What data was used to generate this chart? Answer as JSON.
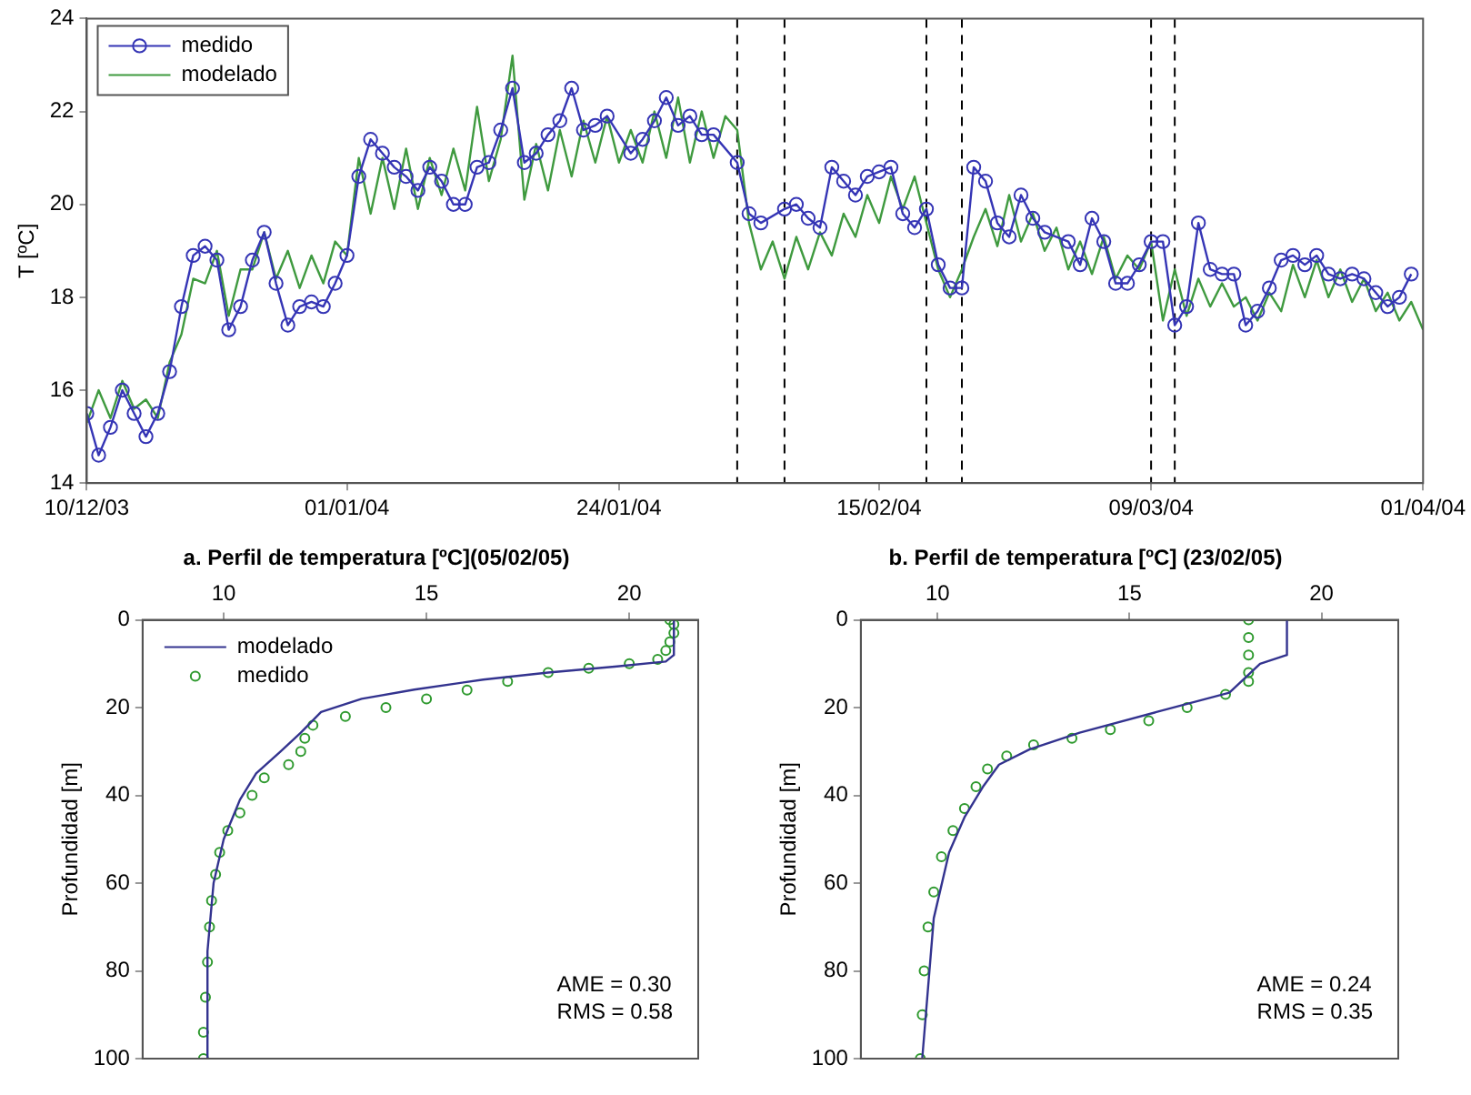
{
  "chart_data": [
    {
      "type": "line",
      "ylabel": "T [ºC]",
      "xlim": [
        "2003-12-10",
        "2004-04-01"
      ],
      "xticks": [
        {
          "value": "2003-12-10",
          "label": "10/12/03"
        },
        {
          "value": "2004-01-01",
          "label": "01/01/04"
        },
        {
          "value": "2004-01-24",
          "label": "24/01/04"
        },
        {
          "value": "2004-02-15",
          "label": "15/02/04"
        },
        {
          "value": "2004-03-09",
          "label": "09/03/04"
        },
        {
          "value": "2004-04-01",
          "label": "01/04/04"
        }
      ],
      "ylim": [
        14,
        24
      ],
      "yticks": [
        14,
        16,
        18,
        20,
        22,
        24
      ],
      "grid": false,
      "legend": "top left",
      "series": [
        {
          "name": "medido",
          "color": "#3535b5",
          "marker": "circle",
          "x": [
            "2003-12-10",
            "2003-12-11",
            "2003-12-12",
            "2003-12-13",
            "2003-12-14",
            "2003-12-15",
            "2003-12-16",
            "2003-12-17",
            "2003-12-18",
            "2003-12-19",
            "2003-12-20",
            "2003-12-21",
            "2003-12-22",
            "2003-12-23",
            "2003-12-24",
            "2003-12-25",
            "2003-12-26",
            "2003-12-27",
            "2003-12-28",
            "2003-12-29",
            "2003-12-30",
            "2003-12-31",
            "2004-01-01",
            "2004-01-02",
            "2004-01-03",
            "2004-01-04",
            "2004-01-05",
            "2004-01-06",
            "2004-01-07",
            "2004-01-08",
            "2004-01-09",
            "2004-01-10",
            "2004-01-11",
            "2004-01-12",
            "2004-01-13",
            "2004-01-14",
            "2004-01-15",
            "2004-01-16",
            "2004-01-17",
            "2004-01-18",
            "2004-01-19",
            "2004-01-20",
            "2004-01-21",
            "2004-01-22",
            "2004-01-23",
            "2004-01-25",
            "2004-01-26",
            "2004-01-27",
            "2004-01-28",
            "2004-01-29",
            "2004-01-30",
            "2004-01-31",
            "2004-02-01",
            "2004-02-03",
            "2004-02-04",
            "2004-02-05",
            "2004-02-07",
            "2004-02-08",
            "2004-02-09",
            "2004-02-10",
            "2004-02-11",
            "2004-02-12",
            "2004-02-13",
            "2004-02-14",
            "2004-02-15",
            "2004-02-16",
            "2004-02-17",
            "2004-02-18",
            "2004-02-19",
            "2004-02-20",
            "2004-02-21",
            "2004-02-22",
            "2004-02-23",
            "2004-02-24",
            "2004-02-25",
            "2004-02-26",
            "2004-02-27",
            "2004-02-28",
            "2004-02-29",
            "2004-03-02",
            "2004-03-03",
            "2004-03-04",
            "2004-03-05",
            "2004-03-06",
            "2004-03-07",
            "2004-03-08",
            "2004-03-09",
            "2004-03-10",
            "2004-03-11",
            "2004-03-12",
            "2004-03-13",
            "2004-03-14",
            "2004-03-15",
            "2004-03-16",
            "2004-03-17",
            "2004-03-18",
            "2004-03-19",
            "2004-03-20",
            "2004-03-21",
            "2004-03-22",
            "2004-03-23",
            "2004-03-24",
            "2004-03-25",
            "2004-03-26",
            "2004-03-27",
            "2004-03-28",
            "2004-03-29",
            "2004-03-30",
            "2004-03-31"
          ],
          "values": [
            15.5,
            14.6,
            15.2,
            16.0,
            15.5,
            15.0,
            15.5,
            16.4,
            17.8,
            18.9,
            19.1,
            18.8,
            17.3,
            17.8,
            18.8,
            19.4,
            18.3,
            17.4,
            17.8,
            17.9,
            17.8,
            18.3,
            18.9,
            20.6,
            21.4,
            21.1,
            20.8,
            20.6,
            20.3,
            20.8,
            20.5,
            20.0,
            20.0,
            20.8,
            20.9,
            21.6,
            22.5,
            20.9,
            21.1,
            21.5,
            21.8,
            22.5,
            21.6,
            21.7,
            21.9,
            21.1,
            21.4,
            21.8,
            22.3,
            21.7,
            21.9,
            21.5,
            21.5,
            20.9,
            19.8,
            19.6,
            19.9,
            20.0,
            19.7,
            19.5,
            20.8,
            20.5,
            20.2,
            20.6,
            20.7,
            20.8,
            19.8,
            19.5,
            19.9,
            18.7,
            18.2,
            18.2,
            20.8,
            20.5,
            19.6,
            19.3,
            20.2,
            19.7,
            19.4,
            19.2,
            18.7,
            19.7,
            19.2,
            18.3,
            18.3,
            18.7,
            19.2,
            19.2,
            17.4,
            17.8,
            19.6,
            18.6,
            18.5,
            18.5,
            17.4,
            17.7,
            18.2,
            18.8,
            18.9,
            18.7,
            18.9,
            18.5,
            18.4,
            18.5,
            18.4,
            18.1,
            17.8,
            18.0,
            18.5
          ]
        },
        {
          "name": "modelado",
          "color": "#3f9a3f",
          "marker": "none",
          "x": [
            "2003-12-10",
            "2003-12-11",
            "2003-12-12",
            "2003-12-13",
            "2003-12-14",
            "2003-12-15",
            "2003-12-16",
            "2003-12-17",
            "2003-12-18",
            "2003-12-19",
            "2003-12-20",
            "2003-12-21",
            "2003-12-22",
            "2003-12-23",
            "2003-12-24",
            "2003-12-25",
            "2003-12-26",
            "2003-12-27",
            "2003-12-28",
            "2003-12-29",
            "2003-12-30",
            "2003-12-31",
            "2004-01-01",
            "2004-01-02",
            "2004-01-03",
            "2004-01-04",
            "2004-01-05",
            "2004-01-06",
            "2004-01-07",
            "2004-01-08",
            "2004-01-09",
            "2004-01-10",
            "2004-01-11",
            "2004-01-12",
            "2004-01-13",
            "2004-01-14",
            "2004-01-15",
            "2004-01-16",
            "2004-01-17",
            "2004-01-18",
            "2004-01-19",
            "2004-01-20",
            "2004-01-21",
            "2004-01-22",
            "2004-01-23",
            "2004-01-24",
            "2004-01-25",
            "2004-01-26",
            "2004-01-27",
            "2004-01-28",
            "2004-01-29",
            "2004-01-30",
            "2004-01-31",
            "2004-02-01",
            "2004-02-02",
            "2004-02-03",
            "2004-02-04",
            "2004-02-05",
            "2004-02-06",
            "2004-02-07",
            "2004-02-08",
            "2004-02-09",
            "2004-02-10",
            "2004-02-11",
            "2004-02-12",
            "2004-02-13",
            "2004-02-14",
            "2004-02-15",
            "2004-02-16",
            "2004-02-17",
            "2004-02-18",
            "2004-02-19",
            "2004-02-20",
            "2004-02-21",
            "2004-02-22",
            "2004-02-23",
            "2004-02-24",
            "2004-02-25",
            "2004-02-26",
            "2004-02-27",
            "2004-02-28",
            "2004-02-29",
            "2004-03-01",
            "2004-03-02",
            "2004-03-03",
            "2004-03-04",
            "2004-03-05",
            "2004-03-06",
            "2004-03-07",
            "2004-03-08",
            "2004-03-09",
            "2004-03-10",
            "2004-03-11",
            "2004-03-12",
            "2004-03-13",
            "2004-03-14",
            "2004-03-15",
            "2004-03-16",
            "2004-03-17",
            "2004-03-18",
            "2004-03-19",
            "2004-03-20",
            "2004-03-21",
            "2004-03-22",
            "2004-03-23",
            "2004-03-24",
            "2004-03-25",
            "2004-03-26",
            "2004-03-27",
            "2004-03-28",
            "2004-03-29",
            "2004-03-30",
            "2004-03-31",
            "2004-04-01"
          ],
          "values": [
            15.3,
            16.0,
            15.4,
            16.2,
            15.6,
            15.8,
            15.4,
            16.6,
            17.2,
            18.4,
            18.3,
            19.0,
            17.6,
            18.6,
            18.6,
            19.4,
            18.4,
            19.0,
            18.2,
            18.9,
            18.3,
            19.2,
            18.9,
            21.0,
            19.8,
            21.0,
            19.9,
            21.2,
            19.9,
            21.0,
            20.2,
            21.2,
            20.3,
            22.1,
            20.5,
            21.4,
            23.2,
            20.1,
            21.3,
            20.3,
            21.6,
            20.6,
            21.8,
            20.9,
            21.9,
            20.9,
            21.6,
            20.9,
            22.0,
            21.0,
            22.3,
            20.9,
            22.0,
            21.0,
            21.9,
            21.6,
            19.6,
            18.6,
            19.2,
            18.4,
            19.3,
            18.6,
            19.4,
            18.9,
            19.8,
            19.3,
            20.2,
            19.6,
            20.6,
            19.9,
            20.6,
            19.6,
            18.6,
            18.0,
            18.6,
            19.3,
            19.9,
            19.1,
            20.2,
            19.2,
            19.8,
            19.0,
            19.5,
            18.6,
            19.2,
            18.5,
            19.3,
            18.4,
            18.9,
            18.6,
            19.2,
            17.5,
            18.6,
            17.6,
            18.4,
            17.8,
            18.3,
            17.8,
            18.0,
            17.5,
            18.1,
            17.7,
            18.7,
            18.0,
            18.8,
            18.0,
            18.6,
            17.9,
            18.4,
            17.7,
            18.1,
            17.5,
            17.9,
            17.3
          ]
        }
      ],
      "ref_lines": [
        {
          "axis": "x",
          "value": "2004-02-03",
          "color": "#000000",
          "line_style": "dashed"
        },
        {
          "axis": "x",
          "value": "2004-02-07",
          "color": "#000000",
          "line_style": "dashed"
        },
        {
          "axis": "x",
          "value": "2004-02-19",
          "color": "#000000",
          "line_style": "dashed"
        },
        {
          "axis": "x",
          "value": "2004-02-22",
          "color": "#000000",
          "line_style": "dashed"
        },
        {
          "axis": "x",
          "value": "2004-03-09",
          "color": "#000000",
          "line_style": "dashed"
        },
        {
          "axis": "x",
          "value": "2004-03-11",
          "color": "#000000",
          "line_style": "dashed"
        }
      ]
    },
    {
      "type": "line",
      "title": "a. Perfil de temperatura [ºC](05/02/05)",
      "ylabel": "Profundidad [m]",
      "xlim": [
        8,
        21.7
      ],
      "xticks": [
        10,
        15,
        20
      ],
      "ylim": [
        100,
        0
      ],
      "yticks": [
        0,
        20,
        40,
        60,
        80,
        100
      ],
      "grid": false,
      "legend": "top left",
      "annotations": [
        "AME = 0.30",
        "RMS = 0.58"
      ],
      "series": [
        {
          "name": "modelado",
          "color": "#33338f",
          "marker": "none",
          "x": [
            21.1,
            21.1,
            20.9,
            19.7,
            18.0,
            16.4,
            14.7,
            13.4,
            12.4,
            11.9,
            11.4,
            10.8,
            10.4,
            10.0,
            9.75,
            9.6,
            9.6
          ],
          "values": [
            0,
            8,
            9.5,
            10.6,
            12,
            13.6,
            15.9,
            18,
            21,
            25.7,
            30,
            35,
            41,
            50,
            60,
            75.5,
            100
          ]
        },
        {
          "name": "medido",
          "type": "scatter",
          "color": "#2f9a2f",
          "marker": "circle",
          "x": [
            21.0,
            21.1,
            21.1,
            21.0,
            20.9,
            20.7,
            20.0,
            19.0,
            18.0,
            17.0,
            16.0,
            15.0,
            14.0,
            13.0,
            12.2,
            12.0,
            11.9,
            11.6,
            11.0,
            10.7,
            10.4,
            10.1,
            9.9,
            9.8,
            9.7,
            9.65,
            9.6,
            9.55,
            9.5,
            9.5
          ],
          "values": [
            0,
            1,
            3,
            5,
            7,
            9,
            10,
            11,
            12,
            14,
            16,
            18,
            20,
            22,
            24,
            27,
            30,
            33,
            36,
            40,
            44,
            48,
            53,
            58,
            64,
            70,
            78,
            86,
            94,
            100
          ]
        }
      ]
    },
    {
      "type": "line",
      "title": "b. Perfil de temperatura [ºC] (23/02/05)",
      "ylabel": "Profundidad [m]",
      "xlim": [
        8,
        22
      ],
      "xticks": [
        10,
        15,
        20
      ],
      "ylim": [
        100,
        0
      ],
      "yticks": [
        0,
        20,
        40,
        60,
        80,
        100
      ],
      "grid": false,
      "annotations": [
        "AME = 0.24",
        "RMS = 0.35"
      ],
      "series": [
        {
          "color": "#33338f",
          "marker": "none",
          "x": [
            19.1,
            19.1,
            18.4,
            17.6,
            15.7,
            13.7,
            12.4,
            11.6,
            11.2,
            10.7,
            10.3,
            9.9,
            9.6
          ],
          "values": [
            0,
            8,
            10,
            16.6,
            21,
            25.7,
            29.5,
            33,
            37.8,
            45,
            53,
            68,
            100
          ]
        },
        {
          "type": "scatter",
          "color": "#2f9a2f",
          "marker": "circle",
          "x": [
            18.1,
            18.1,
            18.1,
            18.1,
            18.1,
            17.5,
            16.5,
            15.5,
            14.5,
            13.5,
            12.5,
            11.8,
            11.3,
            11.0,
            10.7,
            10.4,
            10.1,
            9.9,
            9.75,
            9.65,
            9.6,
            9.55
          ],
          "values": [
            0,
            4,
            8,
            12,
            14,
            17,
            20,
            23,
            25,
            27,
            28.5,
            31,
            34,
            38,
            43,
            48,
            54,
            62,
            70,
            80,
            90,
            100
          ]
        }
      ]
    }
  ]
}
